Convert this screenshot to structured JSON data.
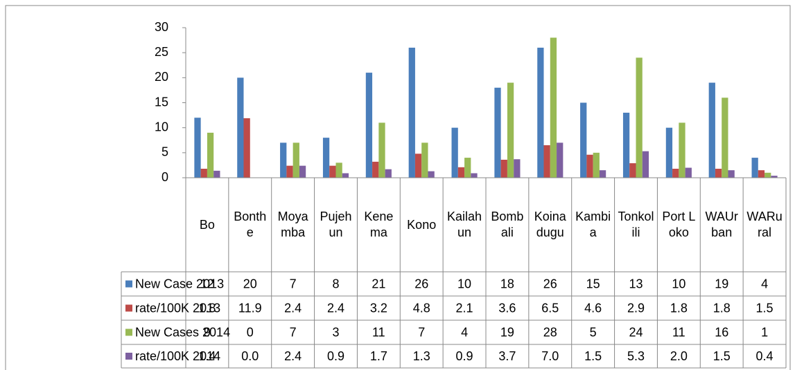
{
  "chart_data": {
    "type": "bar",
    "categories": [
      "Bo",
      "Bonthe",
      "Moyamba",
      "Pujehun",
      "Kenema",
      "Kono",
      "Kailahun",
      "Bombali",
      "Koinadugu",
      "Kambia",
      "Tonkolili",
      "Port Loko",
      "WAUrban",
      "WARural"
    ],
    "series": [
      {
        "name": "New Case 2013",
        "color": "#4a7ebb",
        "values": [
          12,
          20,
          7,
          8,
          21,
          26,
          10,
          18,
          26,
          15,
          13,
          10,
          19,
          4
        ]
      },
      {
        "name": "rate/100K 2013",
        "color": "#be4b48",
        "values": [
          1.8,
          11.9,
          2.4,
          2.4,
          3.2,
          4.8,
          2.1,
          3.6,
          6.5,
          4.6,
          2.9,
          1.8,
          1.8,
          1.5
        ]
      },
      {
        "name": "New Cases 2014",
        "color": "#98b954",
        "values": [
          9,
          0,
          7,
          3,
          11,
          7,
          4,
          19,
          28,
          5,
          24,
          11,
          16,
          1
        ]
      },
      {
        "name": "rate/100K 2014",
        "color": "#7d60a0",
        "values": [
          1.4,
          0,
          2.4,
          0.9,
          1.7,
          1.3,
          0.9,
          3.7,
          7,
          1.5,
          5.3,
          2,
          1.5,
          0.4
        ],
        "value_labels": [
          "1.4",
          "0.0",
          "2.4",
          "0.9",
          "1.7",
          "1.3",
          "0.9",
          "3.7",
          "7.0",
          "1.5",
          "5.3",
          "2.0",
          "1.5",
          "0.4"
        ]
      }
    ],
    "ylim": [
      0,
      30
    ],
    "yticks": [
      0,
      5,
      10,
      15,
      20,
      25,
      30
    ],
    "grid": false,
    "data_table": true
  }
}
